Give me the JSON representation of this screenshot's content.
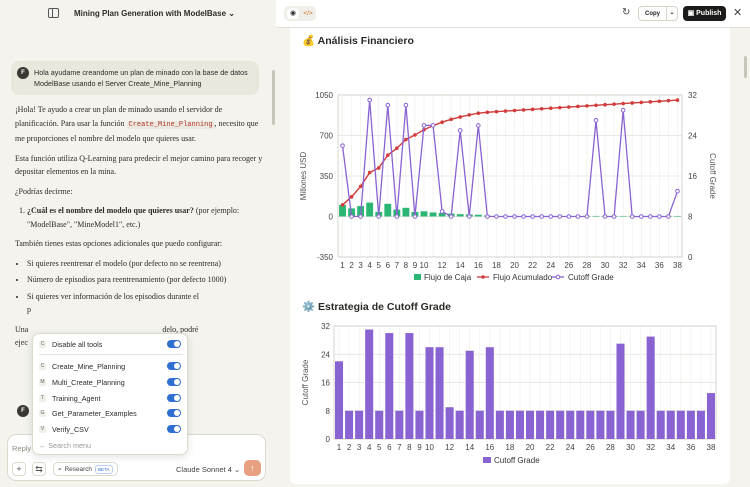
{
  "header": {
    "title": "Mining Plan Generation with ModelBase",
    "copy_label": "Copy",
    "publish_label": "Publish"
  },
  "chat": {
    "user_initial": "F",
    "user_message": "Hola ayudame creandome un plan de minado con la base de datos ModelBase usando el Server Create_Mine_Planning",
    "p1a": "¡Hola! Te ayudo a crear un plan de minado usando el servidor de planificación. Para usar la función ",
    "p1code": "Create_Mine_Planning",
    "p1b": ", necesito que me proporciones el nombre del modelo que quieres usar.",
    "p2": "Esta función utiliza Q-Learning para predecir el mejor camino para recoger y depositar elementos en la mina.",
    "p3": "¿Podrías decirme:",
    "q1_bold": "¿Cuál es el nombre del modelo que quieres usar?",
    "q1_rest": " (por ejemplo: \"ModelBase\", \"MineModel1\", etc.)",
    "p4": "También tienes estas opciones adicionales que puedo configurar:",
    "b1": "Si quieres reentrenar el modelo (por defecto no se reentrena)",
    "b2": "Número de episodios para reentrenamiento (por defecto 1000)",
    "b3": "Si quieres ver información de los episodios durante el",
    "b3_cont": "p",
    "p5a": "Una",
    "p5b": "delo, podré",
    "p6a": "ejec",
    "assistant_initial": "F"
  },
  "tools_menu": {
    "disable_all": "Disable all tools",
    "items": [
      {
        "icon": "C",
        "label": "Create_Mine_Planning"
      },
      {
        "icon": "M",
        "label": "Multi_Create_Planning"
      },
      {
        "icon": "T",
        "label": "Training_Agent"
      },
      {
        "icon": "G",
        "label": "Get_Parameter_Examples"
      },
      {
        "icon": "V",
        "label": "Verify_CSV"
      }
    ],
    "search_placeholder": "Search menu"
  },
  "input": {
    "placeholder": "Reply",
    "research_label": "Research",
    "beta_label": "BETA",
    "model": "Claude Sonnet 4"
  },
  "card1": {
    "icon": "💰",
    "title": "Análisis Financiero"
  },
  "card2": {
    "icon": "⚙️",
    "title": "Estrategia de Cutoff Grade"
  },
  "chart_data": [
    {
      "type": "bar+line",
      "title": "Análisis Financiero",
      "x": [
        1,
        2,
        3,
        4,
        5,
        6,
        7,
        8,
        9,
        10,
        11,
        12,
        13,
        14,
        15,
        16,
        17,
        18,
        19,
        20,
        21,
        22,
        23,
        24,
        25,
        26,
        27,
        28,
        29,
        30,
        31,
        32,
        33,
        34,
        35,
        36,
        37,
        38
      ],
      "x_tick_labels": [
        "1",
        "2",
        "3",
        "4",
        "5",
        "6",
        "7",
        "8",
        "9",
        "10",
        "12",
        "14",
        "16",
        "18",
        "20",
        "22",
        "24",
        "26",
        "28",
        "30",
        "32",
        "34",
        "36",
        "38"
      ],
      "ylabel": "Millones USD",
      "y2label": "Cutoff Grade",
      "ylim": [
        -350,
        1050
      ],
      "y_ticks": [
        -350,
        0,
        350,
        700,
        1050
      ],
      "y2lim": [
        0,
        32
      ],
      "y2_ticks": [
        0,
        8,
        16,
        24,
        32
      ],
      "grid": true,
      "legend_position": "bottom",
      "series": [
        {
          "name": "Flujo de Caja",
          "kind": "bar",
          "axis": "left",
          "color": "#2bb673",
          "values": [
            100,
            70,
            90,
            120,
            40,
            110,
            60,
            75,
            40,
            45,
            35,
            30,
            25,
            20,
            18,
            15,
            8,
            5,
            5,
            5,
            5,
            5,
            5,
            5,
            5,
            5,
            5,
            5,
            5,
            5,
            5,
            5,
            5,
            5,
            5,
            5,
            5,
            5
          ]
        },
        {
          "name": "Flujo Acumulado",
          "kind": "line",
          "axis": "left",
          "color": "#d23c3c",
          "values": [
            100,
            170,
            260,
            380,
            420,
            530,
            590,
            665,
            705,
            750,
            785,
            815,
            840,
            860,
            878,
            893,
            901,
            906,
            911,
            916,
            921,
            926,
            931,
            936,
            941,
            946,
            951,
            956,
            961,
            966,
            971,
            976,
            981,
            986,
            991,
            996,
            1001,
            1006
          ]
        },
        {
          "name": "Cutoff Grade",
          "kind": "line",
          "axis": "right",
          "color": "#8a63d2",
          "values": [
            22,
            8,
            8,
            31,
            8,
            30,
            8,
            30,
            8,
            26,
            26,
            9,
            8,
            25,
            8,
            26,
            8,
            8,
            8,
            8,
            8,
            8,
            8,
            8,
            8,
            8,
            8,
            8,
            27,
            8,
            8,
            29,
            8,
            8,
            8,
            8,
            8,
            13
          ]
        }
      ]
    },
    {
      "type": "bar",
      "title": "Estrategia de Cutoff Grade",
      "x": [
        1,
        2,
        3,
        4,
        5,
        6,
        7,
        8,
        9,
        10,
        11,
        12,
        13,
        14,
        15,
        16,
        17,
        18,
        19,
        20,
        21,
        22,
        23,
        24,
        25,
        26,
        27,
        28,
        29,
        30,
        31,
        32,
        33,
        34,
        35,
        36,
        37,
        38
      ],
      "x_tick_labels": [
        "1",
        "2",
        "3",
        "4",
        "5",
        "6",
        "7",
        "8",
        "9",
        "10",
        "12",
        "14",
        "16",
        "18",
        "20",
        "22",
        "24",
        "26",
        "28",
        "30",
        "32",
        "34",
        "36",
        "38"
      ],
      "ylabel": "Cutoff Grade",
      "ylim": [
        0,
        32
      ],
      "y_ticks": [
        0,
        8,
        16,
        24,
        32
      ],
      "grid": true,
      "legend_position": "bottom",
      "series": [
        {
          "name": "Cutoff Grade",
          "color": "#8a63d2",
          "values": [
            22,
            8,
            8,
            31,
            8,
            30,
            8,
            30,
            8,
            26,
            26,
            9,
            8,
            25,
            8,
            26,
            8,
            8,
            8,
            8,
            8,
            8,
            8,
            8,
            8,
            8,
            8,
            8,
            27,
            8,
            8,
            29,
            8,
            8,
            8,
            8,
            8,
            13
          ]
        }
      ]
    }
  ]
}
